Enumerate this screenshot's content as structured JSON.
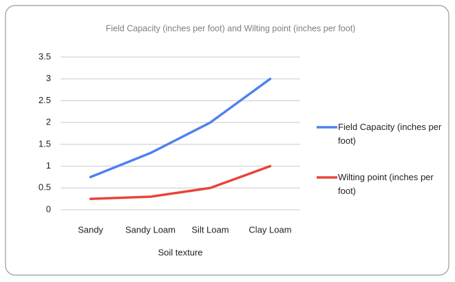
{
  "chart_data": {
    "type": "line",
    "title": "Field Capacity (inches per foot) and Wilting point (inches per foot)",
    "x_label": "Soil texture",
    "categories": [
      "Sandy",
      "Sandy Loam",
      "Silt Loam",
      "Clay Loam"
    ],
    "series": [
      {
        "name": "Field Capacity (inches per foot)",
        "color": "#4f81f0",
        "values": [
          0.75,
          1.3,
          2,
          3
        ]
      },
      {
        "name": "Wilting point (inches per foot)",
        "color": "#e8443a",
        "values": [
          0.25,
          0.3,
          0.5,
          1
        ]
      }
    ],
    "ylim": [
      0,
      3.5
    ],
    "yticks": [
      0,
      0.5,
      1,
      1.5,
      2,
      2.5,
      3,
      3.5
    ],
    "grid": true,
    "legend": "right"
  }
}
